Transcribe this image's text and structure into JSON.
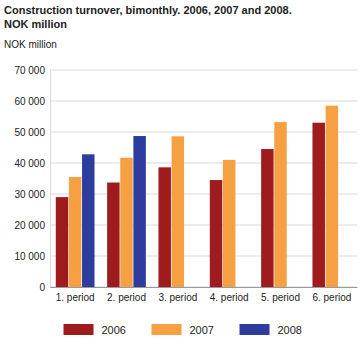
{
  "chart_data": {
    "type": "bar",
    "title": "Construction turnover, bimonthly. 2006, 2007 and 2008.",
    "subtitle": "NOK million",
    "y_label": "NOK million",
    "categories": [
      "1. period",
      "2. period",
      "3. period",
      "4. period",
      "5. period",
      "6. period"
    ],
    "series": [
      {
        "name": "2006",
        "color": "#9e1b1e",
        "values": [
          29000,
          33700,
          38600,
          34500,
          44500,
          53000
        ]
      },
      {
        "name": "2007",
        "color": "#f7a043",
        "values": [
          35500,
          41700,
          48600,
          41000,
          53200,
          58500
        ]
      },
      {
        "name": "2008",
        "color": "#2e3c9e",
        "values": [
          42800,
          48700,
          null,
          null,
          null,
          null
        ]
      }
    ],
    "ylim": [
      0,
      70000
    ],
    "yticks": [
      0,
      {
        "value": 10000,
        "label": "10 000"
      },
      {
        "value": 20000,
        "label": "20 000"
      },
      {
        "value": 30000,
        "label": "30 000"
      },
      {
        "value": 40000,
        "label": "40 000"
      },
      {
        "value": 50000,
        "label": "50 000"
      },
      {
        "value": 60000,
        "label": "60 000"
      },
      {
        "value": 70000,
        "label": "70 000"
      }
    ],
    "grid": true,
    "legend": "bottom"
  }
}
